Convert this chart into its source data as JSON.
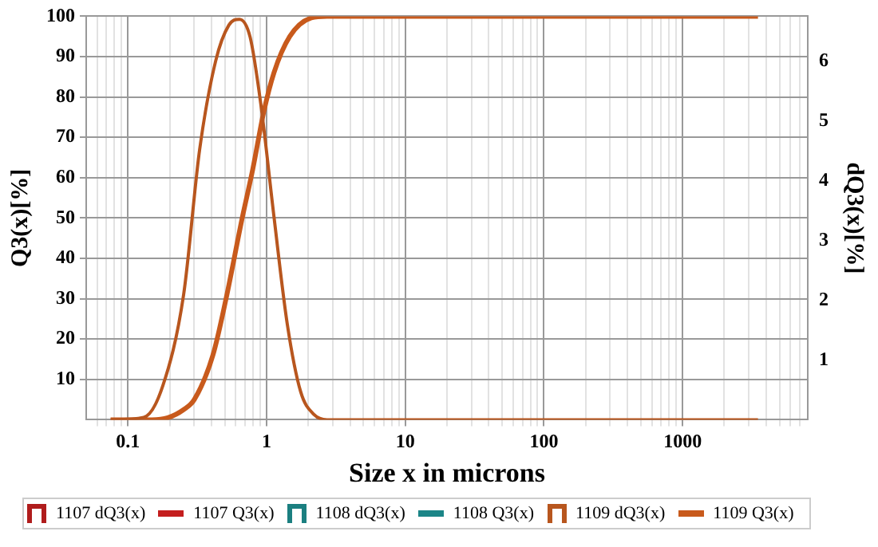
{
  "chart_data": {
    "type": "line",
    "xlabel": "Size x in microns",
    "ylabel": "Q3(x)[%]",
    "y2label": "dQ3(x)[%]",
    "log": "x",
    "grid": true,
    "legend": "bottom",
    "marker": "none",
    "line_style": "solid",
    "xlim": [
      0.05,
      8000
    ],
    "xticks": [
      {
        "value": 0.06,
        "label": null
      },
      {
        "value": 0.07,
        "label": null
      },
      {
        "value": 0.08,
        "label": null
      },
      {
        "value": 0.09,
        "label": null
      },
      0.1,
      {
        "value": 0.2,
        "label": null
      },
      {
        "value": 0.3,
        "label": null
      },
      {
        "value": 0.4,
        "label": null
      },
      {
        "value": 0.5,
        "label": null
      },
      {
        "value": 0.6,
        "label": null
      },
      {
        "value": 0.7,
        "label": null
      },
      {
        "value": 0.8,
        "label": null
      },
      {
        "value": 0.9,
        "label": null
      },
      1,
      {
        "value": 2,
        "label": null
      },
      {
        "value": 3,
        "label": null
      },
      {
        "value": 4,
        "label": null
      },
      {
        "value": 5,
        "label": null
      },
      {
        "value": 6,
        "label": null
      },
      {
        "value": 7,
        "label": null
      },
      {
        "value": 8,
        "label": null
      },
      {
        "value": 9,
        "label": null
      },
      10,
      {
        "value": 20,
        "label": null
      },
      {
        "value": 30,
        "label": null
      },
      {
        "value": 40,
        "label": null
      },
      {
        "value": 50,
        "label": null
      },
      {
        "value": 60,
        "label": null
      },
      {
        "value": 70,
        "label": null
      },
      {
        "value": 80,
        "label": null
      },
      {
        "value": 90,
        "label": null
      },
      100,
      {
        "value": 200,
        "label": null
      },
      {
        "value": 300,
        "label": null
      },
      {
        "value": 400,
        "label": null
      },
      {
        "value": 500,
        "label": null
      },
      {
        "value": 600,
        "label": null
      },
      {
        "value": 700,
        "label": null
      },
      {
        "value": 800,
        "label": null
      },
      {
        "value": 900,
        "label": null
      },
      1000,
      {
        "value": 2000,
        "label": null
      },
      {
        "value": 3000,
        "label": null
      },
      {
        "value": 4000,
        "label": null
      },
      {
        "value": 5000,
        "label": null
      },
      {
        "value": 6000,
        "label": null
      },
      {
        "value": 7000,
        "label": null
      }
    ],
    "ylim": [
      0,
      100
    ],
    "yticks": [
      10,
      20,
      30,
      40,
      50,
      60,
      70,
      80,
      90,
      100
    ],
    "y2lim": [
      0,
      6.75
    ],
    "y2ticks": [
      1,
      2,
      3,
      4,
      5,
      6
    ],
    "series": [
      {
        "name": "1107 dQ3(x)",
        "color": "#b01c1c",
        "axis": "y2"
      },
      {
        "name": "1107 Q3(x)",
        "color": "#c41e1e",
        "axis": "y"
      },
      {
        "name": "1108 dQ3(x)",
        "color": "#1b7f80",
        "axis": "y2"
      },
      {
        "name": "1108 Q3(x)",
        "color": "#1b8587",
        "axis": "y"
      },
      {
        "name": "1109 dQ3(x)",
        "color": "#b8561e",
        "axis": "y2",
        "x": [
          0.075,
          0.13,
          0.178,
          0.252,
          0.329,
          0.429,
          0.534,
          0.638,
          0.761,
          0.906,
          1.13,
          1.41,
          1.76,
          2.19,
          2.73,
          3500
        ],
        "values": [
          0,
          0.04,
          0.56,
          2.09,
          4.52,
          6.0,
          6.6,
          6.7,
          6.4,
          5.3,
          3.4,
          1.6,
          0.47,
          0.09,
          0,
          0
        ]
      },
      {
        "name": "1109 Q3(x)",
        "color": "#c85a1c",
        "axis": "y",
        "x": [
          0.075,
          0.149,
          0.194,
          0.252,
          0.301,
          0.41,
          0.51,
          0.667,
          0.794,
          0.95,
          1.13,
          1.47,
          2.1,
          2.73,
          3500
        ],
        "values": [
          0,
          0,
          0.5,
          2.5,
          5,
          16,
          30,
          50,
          62,
          76,
          86,
          95,
          99.6,
          100,
          100
        ]
      }
    ]
  }
}
